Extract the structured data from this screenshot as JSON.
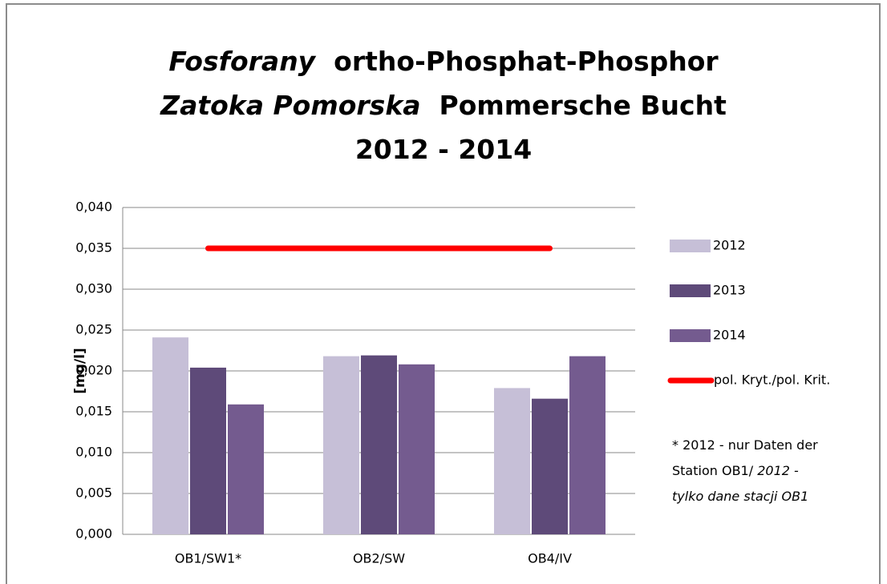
{
  "chart_data": {
    "type": "bar",
    "title_lines": [
      [
        {
          "text": "Fosforany",
          "italic": true
        },
        {
          "text": "  ortho-Phosphat-Phosphor"
        }
      ],
      [
        {
          "text": "Zatoka Pomorska",
          "italic": true
        },
        {
          "text": "  Pommersche Bucht"
        }
      ],
      [
        {
          "text": "2012 - 2014"
        }
      ]
    ],
    "y_label": "[mg/l]",
    "categories": [
      "OB1/SW1*",
      "OB2/SW",
      "OB4/IV"
    ],
    "series": [
      {
        "name": "2012",
        "color": "#c6bfd7",
        "values": [
          0.0241,
          0.0218,
          0.0179
        ]
      },
      {
        "name": "2013",
        "color": "#5e4a79",
        "values": [
          0.0204,
          0.0219,
          0.0166
        ]
      },
      {
        "name": "2014",
        "color": "#745b8f",
        "values": [
          0.0159,
          0.0208,
          0.0218
        ]
      },
      {
        "name": "pol. Kryt./pol. Krit.",
        "color": "#ff0000",
        "type": "line",
        "values": [
          0.035,
          0.035,
          0.035
        ]
      }
    ],
    "ylim": [
      0,
      0.04
    ],
    "yticks": [
      {
        "value": 0,
        "label": "0,000"
      },
      {
        "value": 0.005,
        "label": "0,005"
      },
      {
        "value": 0.01,
        "label": "0,010"
      },
      {
        "value": 0.015,
        "label": "0,015"
      },
      {
        "value": 0.02,
        "label": "0,020"
      },
      {
        "value": 0.025,
        "label": "0,025"
      },
      {
        "value": 0.03,
        "label": "0,030"
      },
      {
        "value": 0.035,
        "label": "0,035"
      },
      {
        "value": 0.04,
        "label": "0,040"
      }
    ],
    "grid": true,
    "legend": "right",
    "annotation_lines": [
      [
        {
          "text": "* 2012 - nur Daten der"
        }
      ],
      [
        {
          "text": "Station OB1/ "
        },
        {
          "text": "2012 -",
          "italic": true
        }
      ],
      [
        {
          "text": "tylko dane stacji OB1",
          "italic": true
        }
      ]
    ]
  }
}
